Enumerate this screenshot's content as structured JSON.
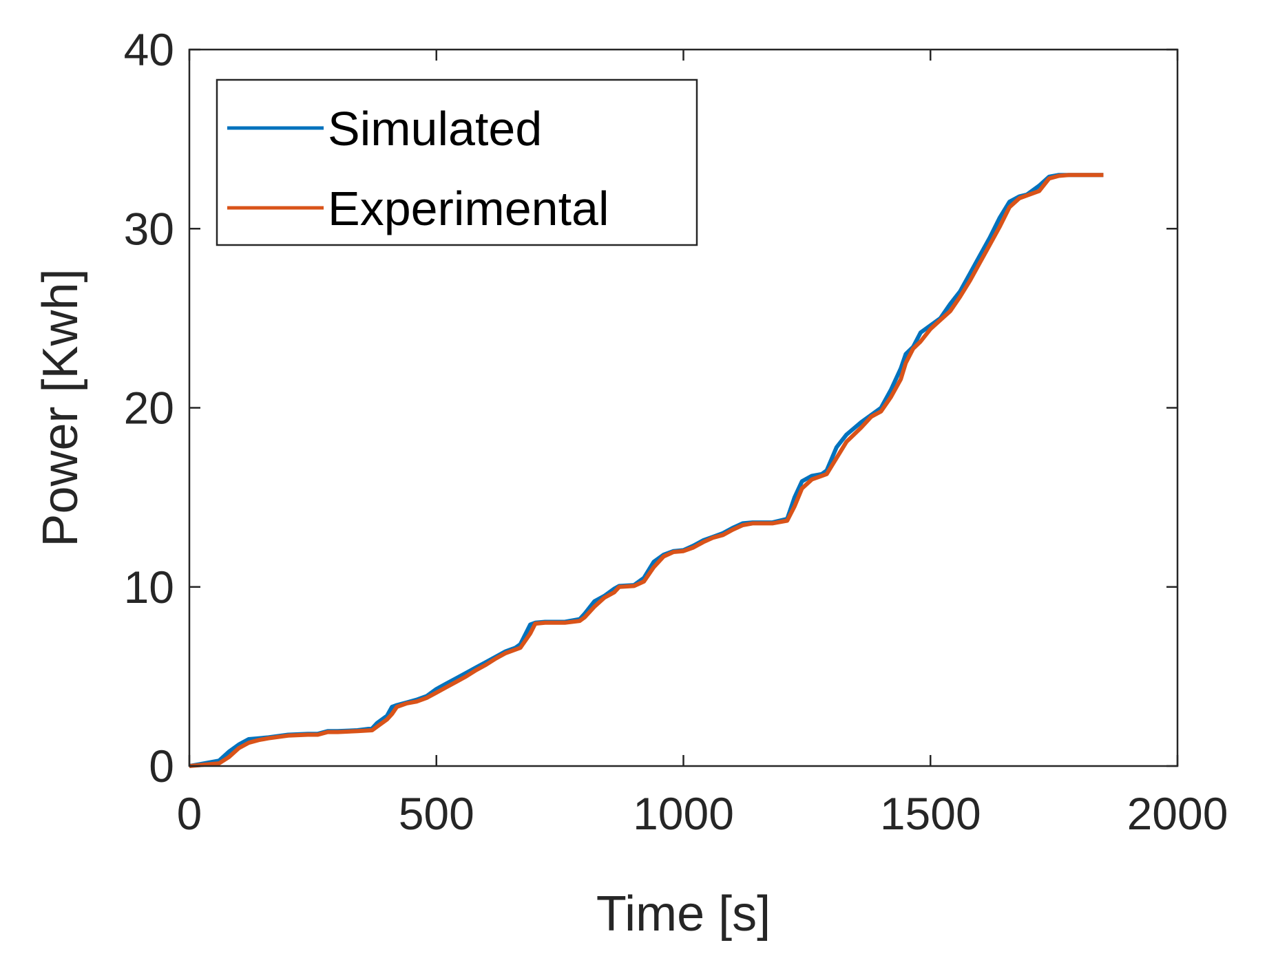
{
  "chart_data": {
    "type": "line",
    "title": "",
    "xlabel": "Time [s]",
    "ylabel": "Power [Kwh]",
    "xlim": [
      0,
      2000
    ],
    "ylim": [
      0,
      40
    ],
    "xticks": [
      0,
      500,
      1000,
      1500,
      2000
    ],
    "yticks": [
      0,
      10,
      20,
      30,
      40
    ],
    "xtick_labels": [
      "0",
      "500",
      "1000",
      "1500",
      "2000"
    ],
    "ytick_labels": [
      "0",
      "10",
      "20",
      "30",
      "40"
    ],
    "grid": false,
    "legend_position": "top-left",
    "series": [
      {
        "name": "Simulated",
        "color": "#0072BD",
        "x": [
          0,
          20,
          40,
          60,
          80,
          100,
          120,
          140,
          160,
          200,
          240,
          260,
          280,
          300,
          340,
          370,
          380,
          400,
          410,
          420,
          440,
          460,
          480,
          500,
          520,
          540,
          560,
          580,
          600,
          620,
          640,
          660,
          670,
          690,
          700,
          720,
          760,
          790,
          800,
          820,
          840,
          860,
          870,
          900,
          920,
          940,
          960,
          980,
          1000,
          1020,
          1040,
          1060,
          1080,
          1100,
          1120,
          1140,
          1180,
          1210,
          1225,
          1240,
          1260,
          1280,
          1290,
          1310,
          1330,
          1360,
          1380,
          1400,
          1420,
          1440,
          1450,
          1465,
          1480,
          1500,
          1520,
          1540,
          1560,
          1580,
          1600,
          1620,
          1640,
          1660,
          1680,
          1695,
          1720,
          1740,
          1760,
          1780,
          1800,
          1850
        ],
        "values": [
          0,
          0.1,
          0.2,
          0.3,
          0.8,
          1.2,
          1.5,
          1.55,
          1.6,
          1.75,
          1.8,
          1.8,
          1.95,
          1.95,
          2.0,
          2.1,
          2.4,
          2.8,
          3.3,
          3.4,
          3.55,
          3.7,
          3.9,
          4.3,
          4.6,
          4.9,
          5.2,
          5.5,
          5.8,
          6.1,
          6.4,
          6.6,
          6.8,
          7.9,
          8.0,
          8.05,
          8.05,
          8.2,
          8.5,
          9.2,
          9.5,
          9.9,
          10.05,
          10.1,
          10.5,
          11.4,
          11.8,
          12.0,
          12.05,
          12.3,
          12.6,
          12.8,
          13.0,
          13.3,
          13.55,
          13.6,
          13.6,
          13.8,
          15.0,
          15.9,
          16.2,
          16.3,
          16.5,
          17.8,
          18.5,
          19.2,
          19.6,
          20.0,
          21.0,
          22.2,
          23.0,
          23.4,
          24.2,
          24.6,
          25.0,
          25.8,
          26.5,
          27.5,
          28.5,
          29.5,
          30.6,
          31.5,
          31.8,
          31.9,
          32.4,
          32.9,
          33.0,
          33.0,
          33.0,
          33.0
        ]
      },
      {
        "name": "Experimental",
        "color": "#D95319",
        "x": [
          0,
          20,
          40,
          60,
          80,
          100,
          120,
          140,
          160,
          200,
          240,
          260,
          280,
          300,
          340,
          370,
          380,
          400,
          410,
          420,
          440,
          460,
          480,
          500,
          520,
          540,
          560,
          580,
          600,
          620,
          640,
          660,
          670,
          690,
          700,
          720,
          760,
          790,
          800,
          820,
          840,
          860,
          870,
          900,
          920,
          940,
          960,
          980,
          1000,
          1020,
          1040,
          1060,
          1080,
          1100,
          1120,
          1140,
          1180,
          1210,
          1225,
          1240,
          1260,
          1280,
          1290,
          1310,
          1330,
          1360,
          1380,
          1400,
          1420,
          1440,
          1450,
          1465,
          1480,
          1500,
          1520,
          1540,
          1560,
          1580,
          1600,
          1620,
          1640,
          1660,
          1680,
          1695,
          1720,
          1740,
          1760,
          1780,
          1800,
          1850
        ],
        "values": [
          0,
          0.05,
          0.1,
          0.15,
          0.5,
          1.0,
          1.3,
          1.45,
          1.55,
          1.7,
          1.75,
          1.75,
          1.9,
          1.9,
          1.95,
          2.0,
          2.2,
          2.6,
          2.9,
          3.3,
          3.5,
          3.6,
          3.8,
          4.1,
          4.4,
          4.7,
          5.0,
          5.35,
          5.65,
          6.0,
          6.3,
          6.5,
          6.6,
          7.4,
          7.95,
          8.0,
          8.0,
          8.1,
          8.3,
          8.9,
          9.4,
          9.7,
          10.0,
          10.05,
          10.3,
          11.1,
          11.7,
          11.95,
          12.0,
          12.2,
          12.5,
          12.75,
          12.9,
          13.2,
          13.45,
          13.55,
          13.55,
          13.7,
          14.5,
          15.5,
          16.0,
          16.2,
          16.3,
          17.2,
          18.1,
          18.9,
          19.5,
          19.8,
          20.6,
          21.6,
          22.5,
          23.3,
          23.7,
          24.4,
          24.9,
          25.4,
          26.2,
          27.1,
          28.1,
          29.1,
          30.1,
          31.2,
          31.7,
          31.85,
          32.1,
          32.8,
          32.95,
          33.0,
          33.0,
          33.0
        ]
      }
    ]
  }
}
